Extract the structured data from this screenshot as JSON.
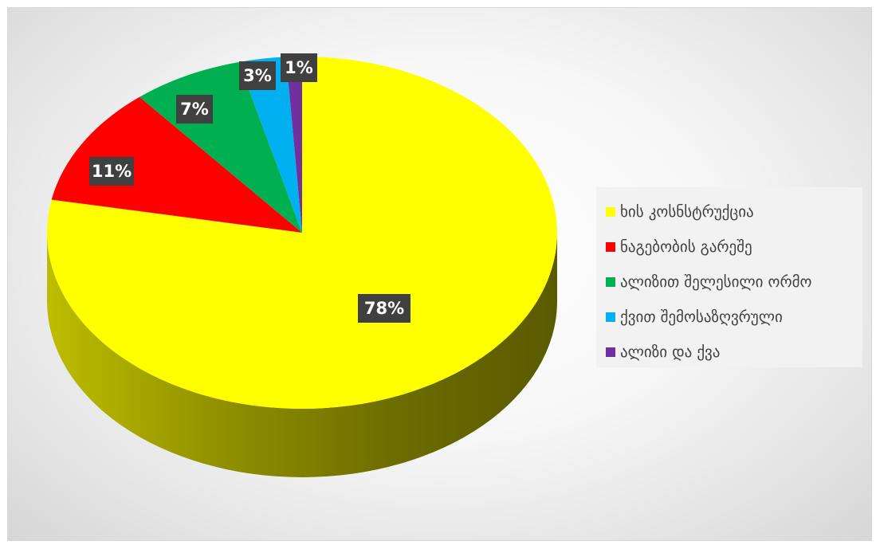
{
  "chart_data": {
    "type": "pie",
    "style": "3d",
    "title": "",
    "categories": [
      "ხის კოსნსტრუქცია",
      "ნაგებობის გარეშე",
      "ალიზით შელესილი ორმო",
      "ქვით შემოსაზღვრული",
      "ალიზი და ქვა"
    ],
    "values": [
      78,
      11,
      7,
      3,
      1
    ],
    "data_labels": [
      "78%",
      "11%",
      "7%",
      "3%",
      "1%"
    ],
    "colors": [
      "#ffff00",
      "#ff0000",
      "#00b050",
      "#00b0f0",
      "#7030a0"
    ],
    "side_colors": [
      "#8a8a00",
      "#8b0000",
      "#006b31",
      "#006a91",
      "#3f1b5c"
    ],
    "label_background": "#404040",
    "legend_position": "right"
  }
}
